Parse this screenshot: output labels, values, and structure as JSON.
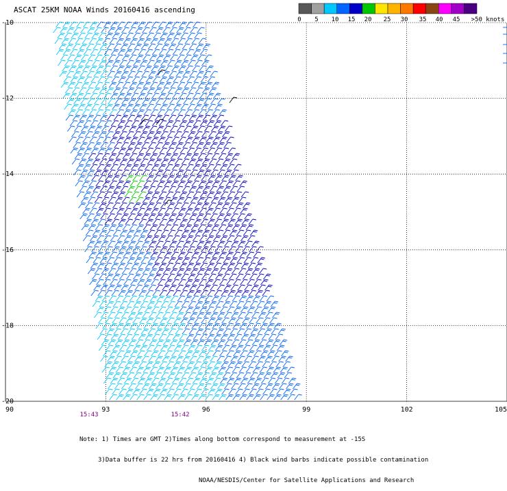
{
  "title": "ASCAT 25KM NOAA Winds 20160416 ascending",
  "colorbar": {
    "colors": [
      "#585858",
      "#a0a0a0",
      "#00c8ff",
      "#0064ff",
      "#0000c8",
      "#00c800",
      "#ffe600",
      "#ffb400",
      "#ff7800",
      "#ff0000",
      "#8b4513",
      "#ff00ff",
      "#a000c8",
      "#4b0082"
    ],
    "labels": [
      "0",
      "5",
      "10",
      "15",
      "20",
      "25",
      "30",
      "35",
      "40",
      "45",
      ">50 knots"
    ]
  },
  "axes": {
    "lon_ticks": [
      "90",
      "93",
      "96",
      "99",
      "102",
      "105"
    ],
    "lat_ticks": [
      "-10",
      "-12",
      "-14",
      "-16",
      "-18",
      "-20"
    ]
  },
  "times": [
    "15:43",
    "15:42"
  ],
  "note": {
    "line1": "Note: 1) Times are GMT 2)Times along bottom correspond to measurement at -15S",
    "line2": "3)Data buffer is 22 hrs from 20160416 4) Black wind barbs indicate possible contamination",
    "line3": "NOAA/NESDIS/Center for Satellite Applications and Research"
  },
  "barb_colors": {
    "cyan": "#00c8ff",
    "blue": "#0064ff",
    "darkblue": "#0000c8",
    "green": "#00c800",
    "black": "#000000"
  }
}
